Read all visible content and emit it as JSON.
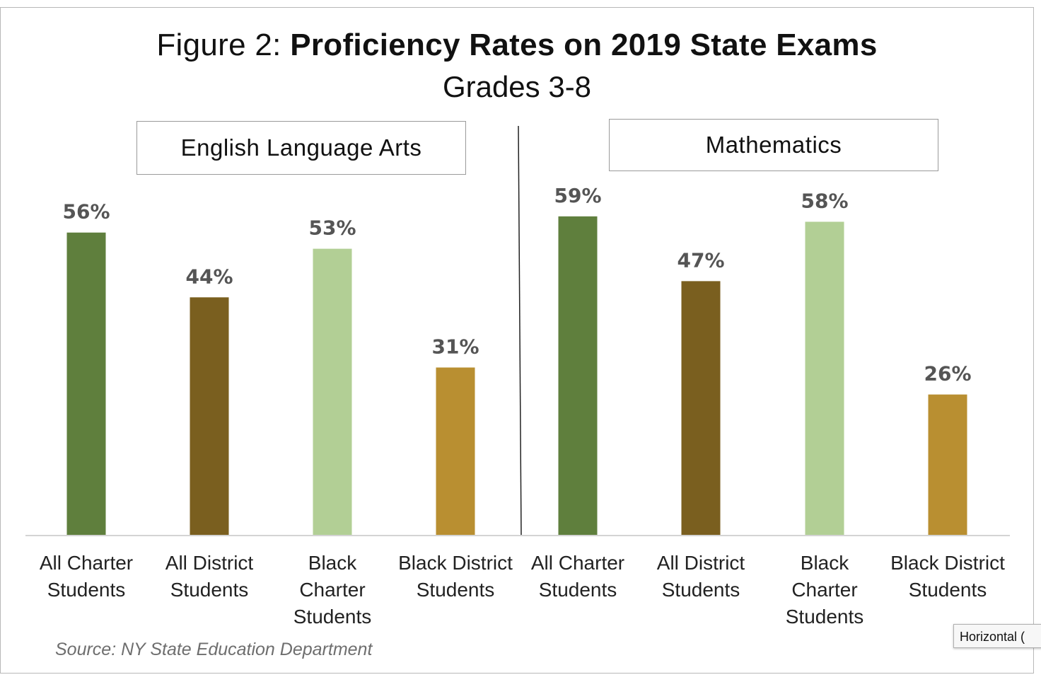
{
  "title": {
    "prefix": "Figure 2: ",
    "main": "Proficiency Rates on 2019 State Exams",
    "subtitle": "Grades 3-8"
  },
  "source": "Source: NY State Education Department",
  "tooltip": "Horizontal (",
  "colors": {
    "all_charter": "#5f7f3d",
    "all_district": "#7a5f1f",
    "black_charter": "#b2cf95",
    "black_district": "#b98f31",
    "value_label": "#555555",
    "divider": "#222222",
    "baseline": "#d4d4d4"
  },
  "chart_data": [
    {
      "type": "bar",
      "panel_label": "English Language Arts",
      "categories": [
        [
          "All Charter",
          "Students"
        ],
        [
          "All District",
          "Students"
        ],
        [
          "Black",
          "Charter",
          "Students"
        ],
        [
          "Black District",
          "Students"
        ]
      ],
      "values": [
        56,
        44,
        53,
        31
      ],
      "value_labels": [
        "56%",
        "44%",
        "53%",
        "31%"
      ],
      "bar_colors": [
        "#5f7f3d",
        "#7a5f1f",
        "#b2cf95",
        "#b98f31"
      ],
      "ylim": [
        0,
        100
      ],
      "grid": false,
      "legend": "none"
    },
    {
      "type": "bar",
      "panel_label": "Mathematics",
      "categories": [
        [
          "All Charter",
          "Students"
        ],
        [
          "All District",
          "Students"
        ],
        [
          "Black",
          "Charter",
          "Students"
        ],
        [
          "Black District",
          "Students"
        ]
      ],
      "values": [
        59,
        47,
        58,
        26
      ],
      "value_labels": [
        "59%",
        "47%",
        "58%",
        "26%"
      ],
      "bar_colors": [
        "#5f7f3d",
        "#7a5f1f",
        "#b2cf95",
        "#b98f31"
      ],
      "ylim": [
        0,
        100
      ],
      "grid": false,
      "legend": "none"
    }
  ]
}
